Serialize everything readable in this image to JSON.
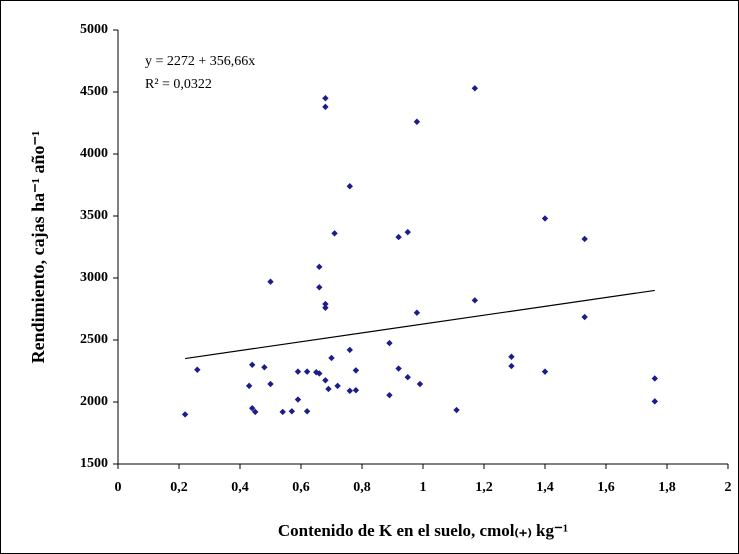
{
  "chart_data": {
    "type": "scatter",
    "x_label": "Contenido de K en el suelo, cmol₍₊₎ kg⁻¹",
    "y_label": "Rendimiento, cajas ha⁻¹ año⁻¹",
    "annotations": [
      "y = 2272  + 356,66x",
      "R² = 0,0322"
    ],
    "trendline": {
      "intercept": 2272,
      "slope": 356.66,
      "xrange": [
        0.22,
        1.76
      ],
      "color": "#000000"
    },
    "xlim": [
      0,
      2
    ],
    "xticks": [
      0,
      {
        "value": 0.2,
        "label": "0,2"
      },
      {
        "value": 0.4,
        "label": "0,4"
      },
      {
        "value": 0.6,
        "label": "0,6"
      },
      {
        "value": 0.8,
        "label": "0,8"
      },
      1,
      {
        "value": 1.2,
        "label": "1,2"
      },
      {
        "value": 1.4,
        "label": "1,4"
      },
      {
        "value": 1.6,
        "label": "1,6"
      },
      {
        "value": 1.8,
        "label": "1,8"
      },
      2
    ],
    "ylim": [
      1500,
      5000
    ],
    "yticks": [
      1500,
      2000,
      2500,
      3000,
      3500,
      4000,
      4500,
      5000
    ],
    "series": [
      {
        "color": "#1c1c8a",
        "x": [
          0.22,
          0.26,
          0.43,
          0.44,
          0.44,
          0.45,
          0.48,
          0.5,
          0.5,
          0.54,
          0.57,
          0.59,
          0.59,
          0.62,
          0.62,
          0.65,
          0.66,
          0.66,
          0.66,
          0.68,
          0.68,
          0.68,
          0.68,
          0.68,
          0.69,
          0.7,
          0.71,
          0.72,
          0.76,
          0.76,
          0.76,
          0.78,
          0.78,
          0.89,
          0.89,
          0.92,
          0.92,
          0.95,
          0.95,
          0.98,
          0.98,
          0.99,
          1.11,
          1.17,
          1.17,
          1.29,
          1.29,
          1.4,
          1.4,
          1.53,
          1.53,
          1.76,
          1.76
        ],
        "values": [
          1900,
          2260,
          2130,
          2300,
          1950,
          1920,
          2280,
          2145,
          2970,
          1920,
          1925,
          2020,
          2245,
          2245,
          1925,
          2240,
          2230,
          3090,
          2925,
          2175,
          2790,
          2760,
          4450,
          4380,
          2105,
          2355,
          3360,
          2130,
          2420,
          2090,
          3740,
          2255,
          2095,
          2475,
          2055,
          3330,
          2270,
          3370,
          2200,
          2720,
          4260,
          2145,
          1935,
          4530,
          2820,
          2365,
          2290,
          3480,
          2245,
          3315,
          2685,
          2190,
          2005
        ]
      }
    ]
  }
}
